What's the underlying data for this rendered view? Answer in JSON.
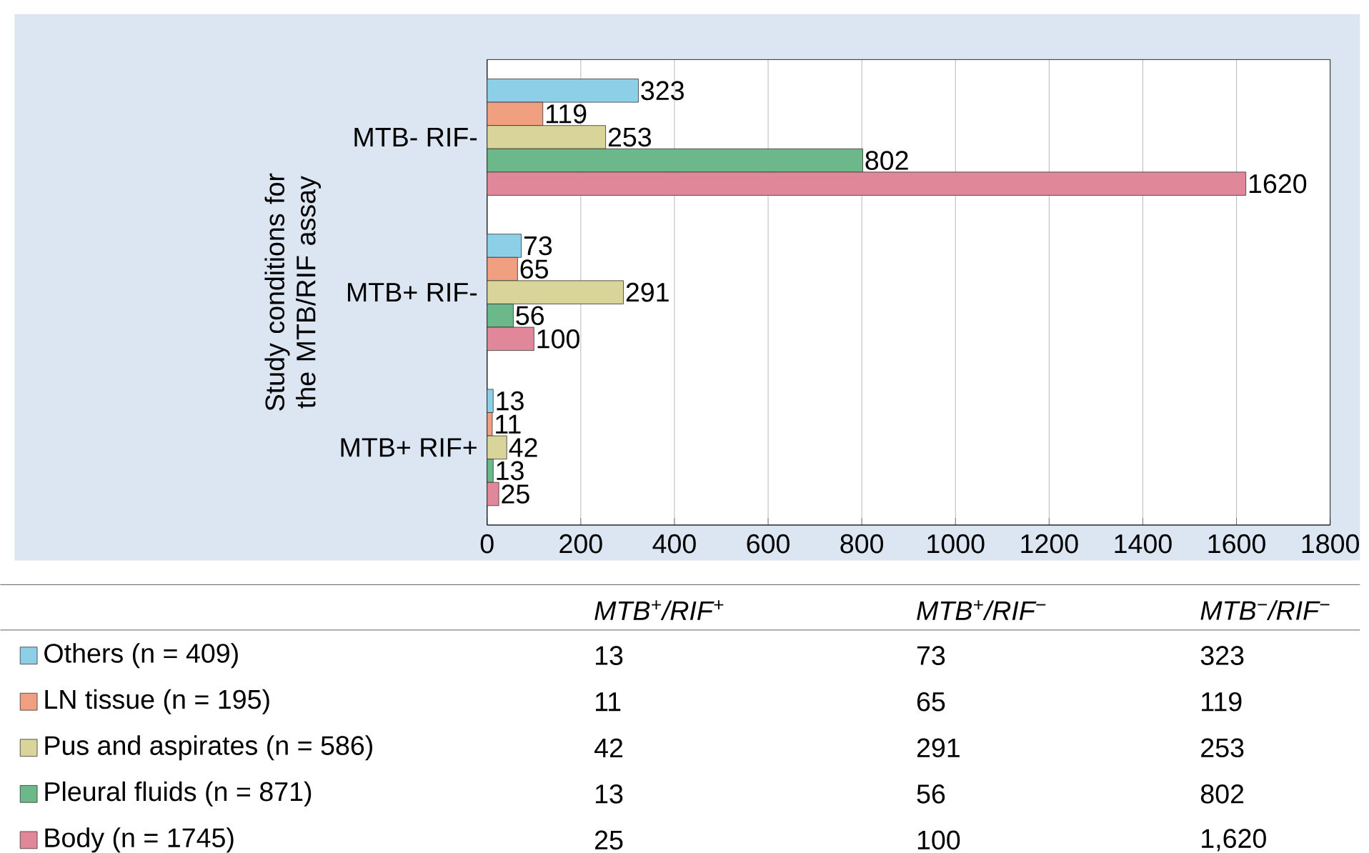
{
  "chart_data": {
    "type": "bar",
    "orientation": "horizontal",
    "ylabel": "Study conditions for the MTB/RIF assay",
    "categories": [
      "MTB- RIF-",
      "MTB+ RIF-",
      "MTB+ RIF+"
    ],
    "series": [
      {
        "name": "Others (n = 409)",
        "color": "#8ecfe8",
        "values": [
          323,
          73,
          13
        ]
      },
      {
        "name": "LN tissue (n = 195)",
        "color": "#f0a080",
        "values": [
          119,
          65,
          11
        ]
      },
      {
        "name": "Pus and aspirates (n = 586)",
        "color": "#d8d49a",
        "values": [
          253,
          291,
          42
        ]
      },
      {
        "name": "Pleural fluids (n = 871)",
        "color": "#6db88a",
        "values": [
          802,
          56,
          13
        ]
      },
      {
        "name": "Body (n = 1745)",
        "color": "#e0889a",
        "values": [
          1620,
          100,
          25
        ]
      }
    ],
    "xlim": [
      0,
      1800
    ],
    "xticks": [
      0,
      200,
      400,
      600,
      800,
      1000,
      1200,
      1400,
      1600,
      1800
    ],
    "grid": "x",
    "data_labels": true,
    "legend": "bottom",
    "annotations": [
      "MTB$^{+}$/RIF$^{+}$",
      "MTB$^{+}$/RIF$^{−}$",
      "MTB$^{−}$/RIF$^{−}$",
      "13",
      "73",
      "323",
      "11",
      "65",
      "119",
      "42",
      "291",
      "253",
      "13",
      "56",
      "802",
      "25",
      "100",
      "1,620"
    ]
  }
}
